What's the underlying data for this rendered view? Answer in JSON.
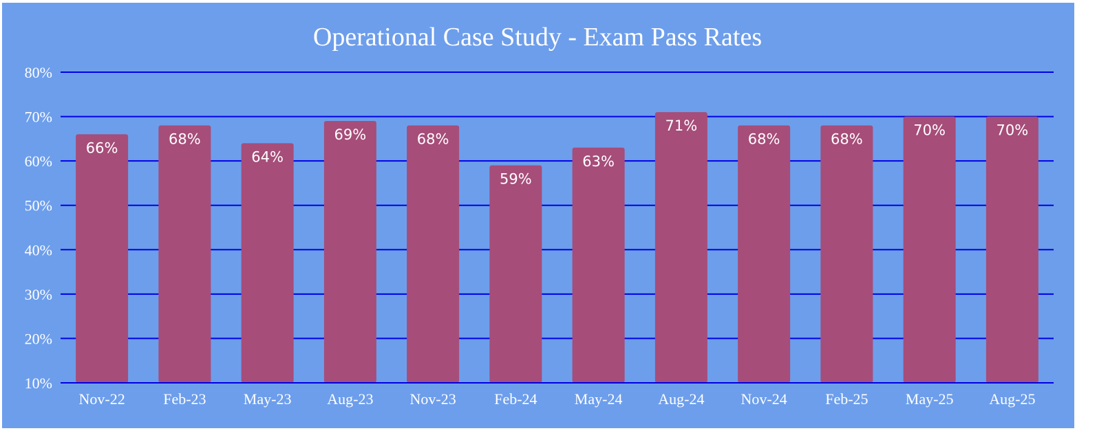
{
  "chart_data": {
    "type": "bar",
    "title": "Operational Case Study - Exam Pass Rates",
    "xlabel": "",
    "ylabel": "",
    "categories": [
      "Nov-22",
      "Feb-23",
      "May-23",
      "Aug-23",
      "Nov-23",
      "Feb-24",
      "May-24",
      "Aug-24",
      "Nov-24",
      "Feb-25",
      "May-25",
      "Aug-25"
    ],
    "values": [
      66,
      68,
      64,
      69,
      68,
      59,
      63,
      71,
      68,
      68,
      70,
      70
    ],
    "data_labels": [
      "66%",
      "68%",
      "64%",
      "69%",
      "68%",
      "59%",
      "63%",
      "71%",
      "68%",
      "68%",
      "70%",
      "70%"
    ],
    "ylim": [
      10,
      80
    ],
    "y_ticks": [
      10,
      20,
      30,
      40,
      50,
      60,
      70,
      80
    ],
    "y_tick_labels": [
      "10%",
      "20%",
      "30%",
      "40%",
      "50%",
      "60%",
      "70%",
      "80%"
    ],
    "grid": true,
    "legend": "none"
  },
  "colors": {
    "background": "#6d9eeb",
    "bar": "#a64d79",
    "gridline": "#0000e6",
    "text": "#ffffff"
  }
}
